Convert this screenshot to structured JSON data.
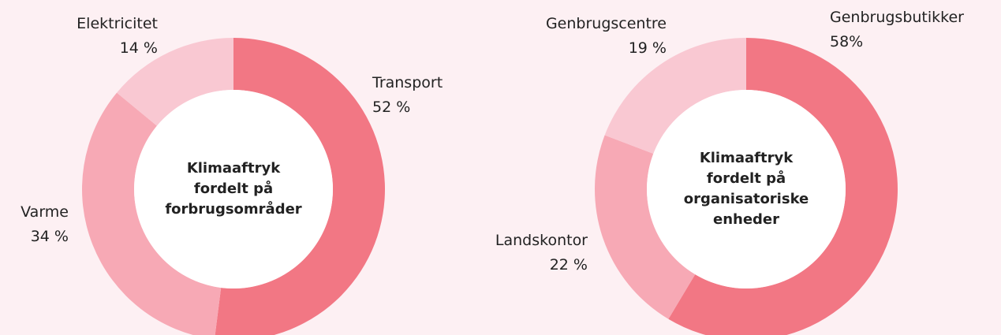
{
  "chart_data": [
    {
      "type": "donut",
      "title": "Klimaaftryk fordelt på forbrugsområder",
      "categories": [
        "Transport",
        "Varme",
        "Elektricitet"
      ],
      "values": [
        52,
        34,
        14
      ],
      "value_labels": [
        "52 %",
        "34 %",
        "14 %"
      ],
      "colors": [
        "#f27784",
        "#f7a9b5",
        "#f9c8d2"
      ]
    },
    {
      "type": "donut",
      "title": "Klimaaftryk fordelt på organisatoriske enheder",
      "categories": [
        "Genbrugsbutikker",
        "Landskontor",
        "Genbrugscentre"
      ],
      "values": [
        58,
        22,
        19
      ],
      "value_labels": [
        "58%",
        "22 %",
        "19 %"
      ],
      "colors": [
        "#f27784",
        "#f7a9b5",
        "#f9c8d2"
      ]
    }
  ]
}
